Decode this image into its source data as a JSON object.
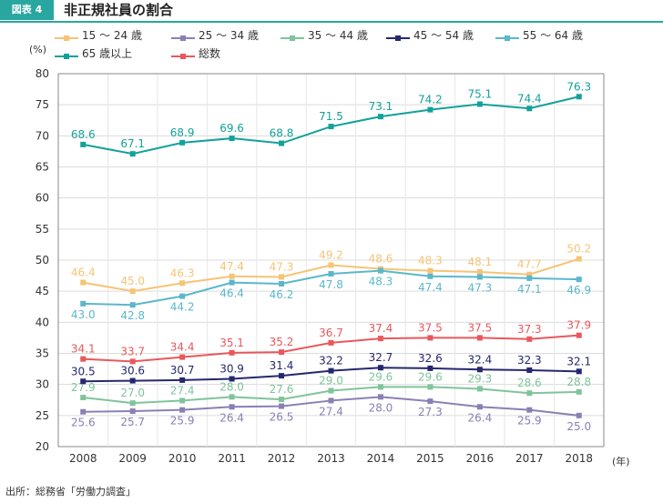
{
  "header": {
    "badge": "図表 4",
    "title": "非正規社員の割合"
  },
  "unit_label": "(%)",
  "year_unit": "(年)",
  "source": "出所：総務省「労働力調査」",
  "chart_data": {
    "type": "line",
    "title": "非正規社員の割合",
    "xlabel": "(年)",
    "ylabel": "(%)",
    "ylim": [
      20,
      80
    ],
    "yticks": [
      20,
      25,
      30,
      35,
      40,
      45,
      50,
      55,
      60,
      65,
      70,
      75,
      80
    ],
    "grid": true,
    "legend_position": "top-left",
    "x": [
      "2008",
      "2009",
      "2010",
      "2011",
      "2012",
      "2013",
      "2014",
      "2015",
      "2016",
      "2017",
      "2018"
    ],
    "series": [
      {
        "name": "15 ～ 24 歳",
        "color": "#f5c476",
        "values": [
          46.4,
          45.0,
          46.3,
          47.4,
          47.3,
          49.2,
          48.6,
          48.3,
          48.1,
          47.7,
          50.2
        ],
        "label_pos": "above"
      },
      {
        "name": "25 ～ 34 歳",
        "color": "#8a80b4",
        "values": [
          25.6,
          25.7,
          25.9,
          26.4,
          26.5,
          27.4,
          28.0,
          27.3,
          26.4,
          25.9,
          25.0
        ],
        "label_pos": "below"
      },
      {
        "name": "35 ～ 44 歳",
        "color": "#7fc49b",
        "values": [
          27.9,
          27.0,
          27.4,
          28.0,
          27.6,
          29.0,
          29.6,
          29.6,
          29.3,
          28.6,
          28.8
        ],
        "label_pos": "above"
      },
      {
        "name": "45 ～ 54 歳",
        "color": "#25286f",
        "values": [
          30.5,
          30.6,
          30.7,
          30.9,
          31.4,
          32.2,
          32.7,
          32.6,
          32.4,
          32.3,
          32.1
        ],
        "label_pos": "above"
      },
      {
        "name": "55 ～ 64 歳",
        "color": "#5bb7cb",
        "values": [
          43.0,
          42.8,
          44.2,
          46.4,
          46.2,
          47.8,
          48.3,
          47.4,
          47.3,
          47.1,
          46.9
        ],
        "label_pos": "below"
      },
      {
        "name": "65 歳以上",
        "color": "#13a19a",
        "values": [
          68.6,
          67.1,
          68.9,
          69.6,
          68.8,
          71.5,
          73.1,
          74.2,
          75.1,
          74.4,
          76.3
        ],
        "label_pos": "above"
      },
      {
        "name": "総数",
        "color": "#e8585c",
        "values": [
          34.1,
          33.7,
          34.4,
          35.1,
          35.2,
          36.7,
          37.4,
          37.5,
          37.5,
          37.3,
          37.9
        ],
        "label_pos": "above"
      }
    ]
  }
}
